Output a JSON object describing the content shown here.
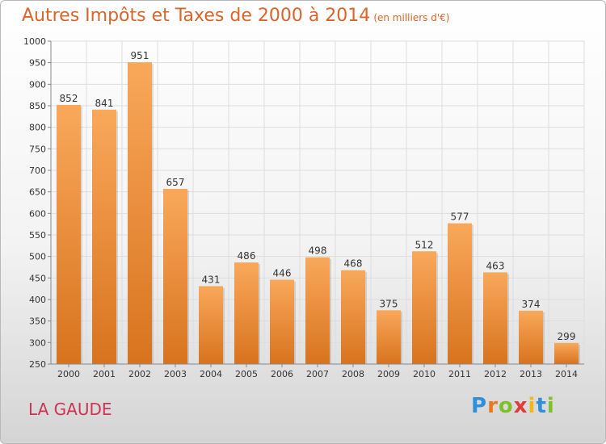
{
  "page": {
    "title": "Autres Impôts et Taxes de 2000 à 2014",
    "subtitle": "(en milliers d'€)",
    "place": "LA GAUDE",
    "logo": {
      "text": "Proxiti",
      "colors": [
        "#2f8fd8",
        "#e8791f",
        "#7fbf2a",
        "#e03a3a",
        "#f0b818",
        "#2f8fd8",
        "#7fbf2a"
      ]
    }
  },
  "chart_data": {
    "type": "bar",
    "categories": [
      "2000",
      "2001",
      "2002",
      "2003",
      "2004",
      "2005",
      "2006",
      "2007",
      "2008",
      "2009",
      "2010",
      "2011",
      "2012",
      "2013",
      "2014"
    ],
    "series": [
      {
        "values": [
          852,
          841,
          951,
          657,
          431,
          486,
          446,
          498,
          468,
          375,
          512,
          577,
          463,
          374,
          299
        ]
      }
    ],
    "yticks": [
      250,
      300,
      350,
      400,
      450,
      500,
      550,
      600,
      650,
      700,
      750,
      800,
      850,
      900,
      950,
      1000
    ],
    "ylim": [
      250,
      1000
    ],
    "grid": true,
    "legend": "none",
    "bar_color_top": "#f9a85a",
    "bar_color_bottom": "#d8731f"
  }
}
